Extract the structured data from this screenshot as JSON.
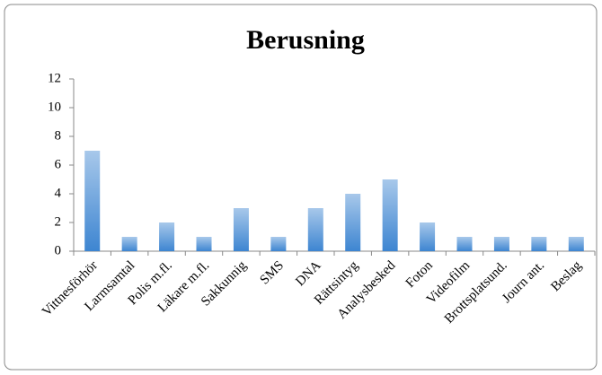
{
  "chart_data": {
    "type": "bar",
    "title": "Berusning",
    "categories": [
      "Vittnesförhör",
      "Larmsamtal",
      "Polis m.fl.",
      "Läkare m.fl.",
      "Sakkunnig",
      "SMS",
      "DNA",
      "Rättsintyg",
      "Analysbesked",
      "Foton",
      "Videofilm",
      "Brottsplatsund.",
      "Journ ant.",
      "Beslag"
    ],
    "values": [
      7,
      1,
      2,
      1,
      3,
      1,
      3,
      4,
      5,
      2,
      1,
      1,
      1,
      1
    ],
    "color": "#3d85d1",
    "ylim": [
      0,
      12
    ],
    "yticks": [
      0,
      2,
      4,
      6,
      8,
      10,
      12
    ],
    "grid": false
  }
}
